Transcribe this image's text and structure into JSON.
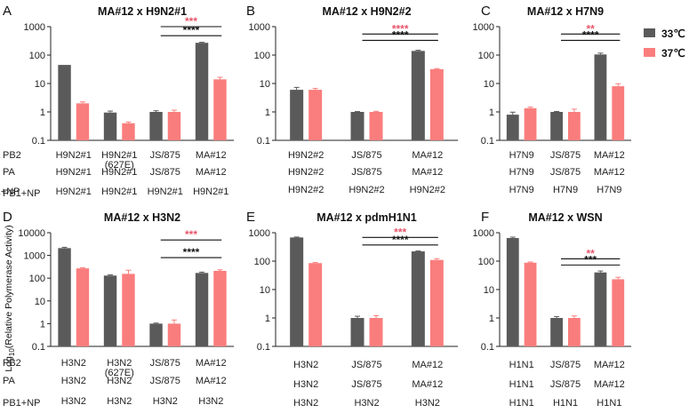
{
  "legend": {
    "items": [
      {
        "label": "33℃",
        "color": "#5a5a5a"
      },
      {
        "label": "37℃",
        "color": "#fa7d7d"
      }
    ]
  },
  "y_axis_label_main": "Log",
  "y_axis_label_sub": "10",
  "y_axis_label_rest": "(Relative Polymerase Activity)",
  "chart_data": [
    {
      "type": "bar",
      "panel": "A",
      "title": "MA#12  x H9N2#1",
      "scale": "log",
      "ylim": [
        0.1,
        1000
      ],
      "yticks": [
        "1000",
        "100",
        "10",
        "1",
        "0.1"
      ],
      "row_labels": [
        "PB2",
        "PA",
        "PB1+NP"
      ],
      "groups": [
        {
          "rows": [
            "H9N2#1",
            "H9N2#1",
            "H9N2#1"
          ],
          "values": [
            45,
            2.0
          ],
          "errors": [
            0,
            0.25
          ]
        },
        {
          "rows": [
            "H9N2#1\n(627E)",
            "H9N2#1",
            "H9N2#1"
          ],
          "values": [
            0.95,
            0.4
          ],
          "errors": [
            0.12,
            0.04
          ]
        },
        {
          "rows": [
            "JS/875",
            "JS/875",
            "H9N2#1"
          ],
          "values": [
            1.0,
            1.0
          ],
          "errors": [
            0.1,
            0.15
          ]
        },
        {
          "rows": [
            "MA#12",
            "MA#12",
            "H9N2#1"
          ],
          "values": [
            270,
            14
          ],
          "errors": [
            12,
            2.5
          ]
        }
      ],
      "brackets": [
        {
          "from": 2,
          "to": 3,
          "at": 1000,
          "text": "***",
          "color": "#e8566a"
        },
        {
          "from": 2,
          "to": 3,
          "at": 480,
          "text": "****",
          "color": "#111111"
        }
      ]
    },
    {
      "type": "bar",
      "panel": "B",
      "title": "MA#12  x H9N2#2",
      "scale": "log",
      "ylim": [
        0.1,
        1000
      ],
      "yticks": [
        "1000",
        "100",
        "10",
        "1",
        "0.1"
      ],
      "row_labels": [
        "PB2",
        "PA",
        "PB1+NP"
      ],
      "groups": [
        {
          "rows": [
            "H9N2#2",
            "H9N2#2",
            "H9N2#2"
          ],
          "values": [
            6.0,
            6.0
          ],
          "errors": [
            1.3,
            0.7
          ]
        },
        {
          "rows": [
            "JS/875",
            "JS/875",
            "H9N2#2"
          ],
          "values": [
            1.0,
            1.0
          ],
          "errors": [
            0.03,
            0.05
          ]
        },
        {
          "rows": [
            "MA#12",
            "MA#12",
            "H9N2#2"
          ],
          "values": [
            140,
            32
          ],
          "errors": [
            8,
            1.5
          ]
        }
      ],
      "brackets": [
        {
          "from": 1,
          "to": 2,
          "at": 550,
          "text": "****",
          "color": "#e8566a"
        },
        {
          "from": 1,
          "to": 2,
          "at": 330,
          "text": "****",
          "color": "#111111"
        }
      ]
    },
    {
      "type": "bar",
      "panel": "C",
      "title": "MA#12  x H7N9",
      "scale": "log",
      "ylim": [
        0.1,
        1000
      ],
      "yticks": [
        "1000",
        "100",
        "10",
        "1",
        "0.1"
      ],
      "row_labels": [],
      "groups": [
        {
          "rows": [
            "H7N9",
            "H7N9",
            "H7N9"
          ],
          "values": [
            0.8,
            1.35
          ],
          "errors": [
            0.18,
            0.12
          ]
        },
        {
          "rows": [
            "JS/875",
            "JS/875",
            "H7N9"
          ],
          "values": [
            1.0,
            1.0
          ],
          "errors": [
            0.04,
            0.25
          ]
        },
        {
          "rows": [
            "MA#12",
            "MA#12",
            "H7N9"
          ],
          "values": [
            105,
            8.0
          ],
          "errors": [
            12,
            1.8
          ]
        }
      ],
      "brackets": [
        {
          "from": 1,
          "to": 2,
          "at": 550,
          "text": "**",
          "color": "#e8566a"
        },
        {
          "from": 1,
          "to": 2,
          "at": 330,
          "text": "****",
          "color": "#111111"
        }
      ]
    },
    {
      "type": "bar",
      "panel": "D",
      "title": "MA#12  x H3N2",
      "scale": "log",
      "ylim": [
        0.1,
        10000
      ],
      "yticks": [
        "10000",
        "1000",
        "100",
        "10",
        "1",
        "0.1"
      ],
      "row_labels": [
        "PB2",
        "PA",
        "PB1+NP"
      ],
      "groups": [
        {
          "rows": [
            "H3N2",
            "H3N2",
            "H3N2"
          ],
          "values": [
            2100,
            270
          ],
          "errors": [
            180,
            20
          ]
        },
        {
          "rows": [
            "H3N2\n(627E)",
            "H3N2",
            "H3N2"
          ],
          "values": [
            130,
            155
          ],
          "errors": [
            10,
            70
          ]
        },
        {
          "rows": [
            "JS/875",
            "JS/875",
            "H3N2"
          ],
          "values": [
            1.0,
            1.0
          ],
          "errors": [
            0.06,
            0.45
          ]
        },
        {
          "rows": [
            "MA#12",
            "MA#12",
            "H3N2"
          ],
          "values": [
            170,
            210
          ],
          "errors": [
            15,
            25
          ]
        }
      ],
      "brackets": [
        {
          "from": 2,
          "to": 3,
          "at": 4800,
          "text": "***",
          "color": "#e8566a"
        },
        {
          "from": 2,
          "to": 3,
          "at": 800,
          "text": "****",
          "color": "#111111"
        }
      ]
    },
    {
      "type": "bar",
      "panel": "E",
      "title": "MA#12  x pdmH1N1",
      "scale": "log",
      "ylim": [
        0.1,
        1000
      ],
      "yticks": [
        "1000",
        "100",
        "10",
        "1",
        "0.1"
      ],
      "row_labels": [],
      "groups": [
        {
          "rows": [
            "H3N2",
            "H3N2",
            "H3N2"
          ],
          "values": [
            680,
            85
          ],
          "errors": [
            25,
            4
          ]
        },
        {
          "rows": [
            "JS/875",
            "JS/875",
            "H3N2"
          ],
          "values": [
            1.0,
            1.0
          ],
          "errors": [
            0.15,
            0.2
          ]
        },
        {
          "rows": [
            "MA#12",
            "MA#12",
            "H3N2"
          ],
          "values": [
            220,
            110
          ],
          "errors": [
            8,
            12
          ]
        }
      ],
      "brackets": [
        {
          "from": 1,
          "to": 2,
          "at": 680,
          "text": "***",
          "color": "#e8566a"
        },
        {
          "from": 1,
          "to": 2,
          "at": 370,
          "text": "****",
          "color": "#111111"
        }
      ]
    },
    {
      "type": "bar",
      "panel": "F",
      "title": "MA#12  x WSN",
      "scale": "log",
      "ylim": [
        0.1,
        1000
      ],
      "yticks": [
        "1000",
        "100",
        "10",
        "1",
        "0.1"
      ],
      "row_labels": [],
      "groups": [
        {
          "rows": [
            "H1N1",
            "H1N1",
            "H1N1"
          ],
          "values": [
            650,
            88
          ],
          "errors": [
            50,
            5
          ]
        },
        {
          "rows": [
            "JS/875",
            "JS/875",
            "H1N1"
          ],
          "values": [
            1.0,
            1.0
          ],
          "errors": [
            0.12,
            0.18
          ]
        },
        {
          "rows": [
            "MA#12",
            "MA#12",
            "H1N1"
          ],
          "values": [
            40,
            23
          ],
          "errors": [
            5,
            4
          ]
        }
      ],
      "brackets": [
        {
          "from": 1,
          "to": 2,
          "at": 120,
          "text": "**",
          "color": "#e8566a"
        },
        {
          "from": 1,
          "to": 2,
          "at": 73,
          "text": "***",
          "color": "#111111"
        }
      ]
    }
  ]
}
